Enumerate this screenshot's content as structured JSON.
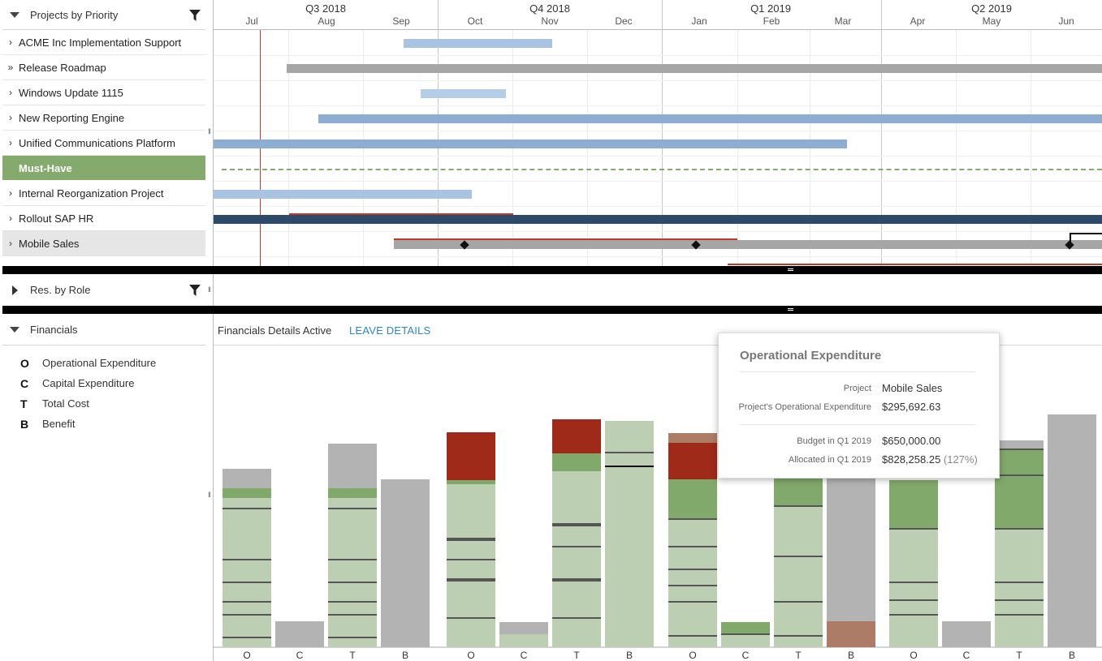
{
  "projects_panel": {
    "title": "Projects by Priority",
    "rows": [
      {
        "label": "ACME Inc Implementation Support",
        "chevron": "›"
      },
      {
        "label": "Release Roadmap",
        "chevron": "»"
      },
      {
        "label": "Windows Update 1115",
        "chevron": "›"
      },
      {
        "label": "New Reporting Engine",
        "chevron": "›"
      },
      {
        "label": "Unified Communications Platform",
        "chevron": "›"
      },
      {
        "label": "Must-Have",
        "chevron": ""
      },
      {
        "label": "Internal Reorganization Project",
        "chevron": "›"
      },
      {
        "label": "Rollout SAP HR",
        "chevron": "›"
      },
      {
        "label": "Mobile Sales",
        "chevron": "›"
      }
    ]
  },
  "timeline": {
    "quarters": [
      "Q3 2018",
      "Q4 2018",
      "Q1 2019",
      "Q2 2019"
    ],
    "months": [
      "Jul",
      "Aug",
      "Sep",
      "Oct",
      "Nov",
      "Dec",
      "Jan",
      "Feb",
      "Mar",
      "Apr",
      "May",
      "Jun"
    ]
  },
  "colors": {
    "bar_blue_light": "#a9c4e3",
    "bar_blue": "#8eadd3",
    "bar_gray": "#a6a6a6",
    "bar_navy": "#2e4a6b",
    "critical_red": "#c0392b",
    "must_have_green": "#85aa6d",
    "fin_light_green": "#bdcfb2",
    "fin_green": "#82a96c",
    "fin_dark_red": "#a02a1a",
    "fin_gray": "#b3b3b3",
    "fin_brown": "#ad7c67",
    "link_blue": "#2f86c8"
  },
  "roles_panel": {
    "title": "Res. by Role"
  },
  "financials_panel": {
    "title": "Financials",
    "legend": [
      {
        "key": "O",
        "label": "Operational Expenditure"
      },
      {
        "key": "C",
        "label": "Capital Expenditure"
      },
      {
        "key": "T",
        "label": "Total Cost"
      },
      {
        "key": "B",
        "label": "Benefit"
      }
    ]
  },
  "financials_toolbar": {
    "status": "Financials Details Active",
    "leave_label": "LEAVE DETAILS"
  },
  "financials_chart": {
    "column_labels": [
      "O",
      "C",
      "T",
      "B"
    ]
  },
  "tooltip": {
    "title": "Operational Expenditure",
    "project_label": "Project",
    "project_value": "Mobile Sales",
    "opex_label": "Project's Operational Expenditure",
    "opex_value": "$295,692.63",
    "budget_label": "Budget in Q1 2019",
    "budget_value": "$650,000.00",
    "allocated_label": "Allocated in Q1 2019",
    "allocated_value": "$828,258.25",
    "allocated_pct": "(127%)"
  },
  "icons": [
    "filter-icon",
    "caret-down-icon",
    "caret-right-icon",
    "chevron-right-icon",
    "double-chevron-right-icon",
    "milestone-diamond-icon",
    "splitter-grip-icon"
  ]
}
